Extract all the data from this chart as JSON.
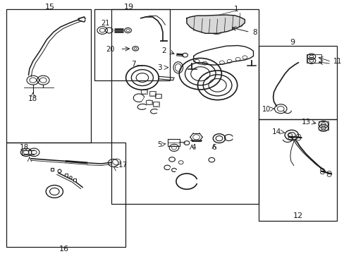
{
  "bg_color": "#ffffff",
  "line_color": "#1a1a1a",
  "fig_width": 4.89,
  "fig_height": 3.6,
  "dpi": 100,
  "boxes": {
    "b15": [
      0.018,
      0.44,
      0.265,
      0.965
    ],
    "b19": [
      0.275,
      0.685,
      0.495,
      0.965
    ],
    "b16": [
      0.018,
      0.025,
      0.365,
      0.44
    ],
    "b9": [
      0.755,
      0.53,
      0.985,
      0.82
    ],
    "b12": [
      0.755,
      0.13,
      0.985,
      0.53
    ],
    "b1": [
      0.325,
      0.195,
      0.755,
      0.965
    ]
  }
}
